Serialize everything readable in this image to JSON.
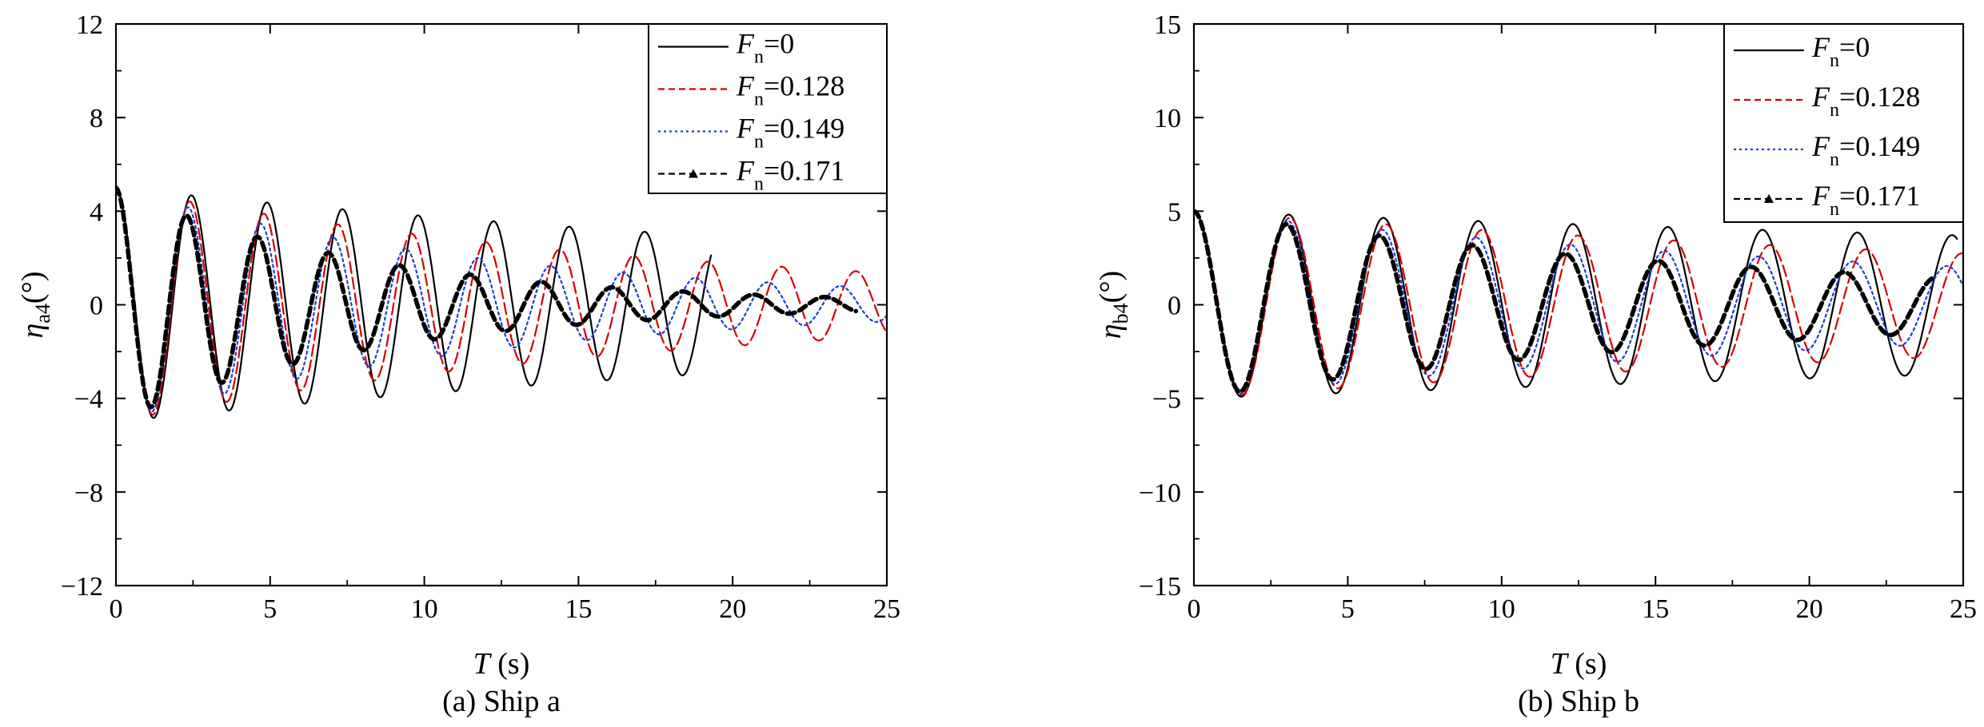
{
  "chart_data": [
    {
      "type": "line",
      "caption": "(a) Ship a",
      "xlabel": {
        "var": "T",
        "unit": " (s)"
      },
      "ylabel": {
        "var": "η",
        "sub": "a4",
        "unit": "(°)"
      },
      "xlim": [
        0,
        25
      ],
      "ylim": [
        -12,
        12
      ],
      "xticks": [
        0,
        5,
        10,
        15,
        20,
        25
      ],
      "yticks": [
        -12,
        -8,
        -4,
        0,
        4,
        8,
        12
      ],
      "xtick_labels": [
        "0",
        "5",
        "10",
        "15",
        "20",
        "25"
      ],
      "ytick_labels": [
        "−12",
        "−8",
        "−4",
        "0",
        "4",
        "8",
        "12"
      ],
      "grid": false,
      "legend_position": "top-right",
      "series": [
        {
          "name_var": "F",
          "name_sub": "n",
          "name_val": "=0",
          "color": "#000000",
          "dash": "solid",
          "width": "thin",
          "marker": "none",
          "amplitude": 5,
          "period": 2.45,
          "decay": 0.0275,
          "t_end": 19.3
        },
        {
          "name_var": "F",
          "name_sub": "n",
          "name_val": "=0.128",
          "color": "#d40000",
          "dash": "dashed",
          "width": "thin",
          "marker": "none",
          "amplitude": 5,
          "period": 2.4,
          "decay": 0.052,
          "t_end": 25
        },
        {
          "name_var": "F",
          "name_sub": "n",
          "name_val": "=0.149",
          "color": "#1a3fd6",
          "dash": "dotted",
          "width": "thin",
          "marker": "none",
          "amplitude": 5,
          "period": 2.35,
          "decay": 0.078,
          "t_end": 25
        },
        {
          "name_var": "F",
          "name_sub": "n",
          "name_val": "=0.171",
          "color": "#000000",
          "dash": "dash-triangle",
          "width": "thick",
          "marker": "triangle",
          "amplitude": 5,
          "period": 2.3,
          "decay": 0.118,
          "t_end": 24
        }
      ]
    },
    {
      "type": "line",
      "caption": "(b) Ship b",
      "xlabel": {
        "var": "T",
        "unit": " (s)"
      },
      "ylabel": {
        "var": "η",
        "sub": "b4",
        "unit": "(°)"
      },
      "xlim": [
        0,
        25
      ],
      "ylim": [
        -15,
        15
      ],
      "xticks": [
        0,
        5,
        10,
        15,
        20,
        25
      ],
      "yticks": [
        -15,
        -10,
        -5,
        0,
        5,
        10,
        15
      ],
      "xtick_labels": [
        "0",
        "5",
        "10",
        "15",
        "20",
        "25"
      ],
      "ytick_labels": [
        "−15",
        "−10",
        "−5",
        "0",
        "5",
        "10",
        "15"
      ],
      "grid": false,
      "legend_position": "top-right",
      "series": [
        {
          "name_var": "F",
          "name_sub": "n",
          "name_val": "=0",
          "color": "#000000",
          "dash": "solid",
          "width": "thin",
          "marker": "none",
          "amplitude": 5,
          "period": 3.08,
          "decay": 0.012,
          "t_end": 24.8
        },
        {
          "name_var": "F",
          "name_sub": "n",
          "name_val": "=0.128",
          "color": "#d40000",
          "dash": "dashed",
          "width": "thin",
          "marker": "none",
          "amplitude": 5,
          "period": 3.12,
          "decay": 0.024,
          "t_end": 25
        },
        {
          "name_var": "F",
          "name_sub": "n",
          "name_val": "=0.149",
          "color": "#1a3fd6",
          "dash": "dotted",
          "width": "thin",
          "marker": "none",
          "amplitude": 5,
          "period": 3.06,
          "decay": 0.036,
          "t_end": 25
        },
        {
          "name_var": "F",
          "name_sub": "n",
          "name_val": "=0.171",
          "color": "#000000",
          "dash": "dash-triangle",
          "width": "thick",
          "marker": "triangle",
          "amplitude": 5,
          "period": 3.02,
          "decay": 0.05,
          "t_end": 24
        }
      ]
    }
  ]
}
